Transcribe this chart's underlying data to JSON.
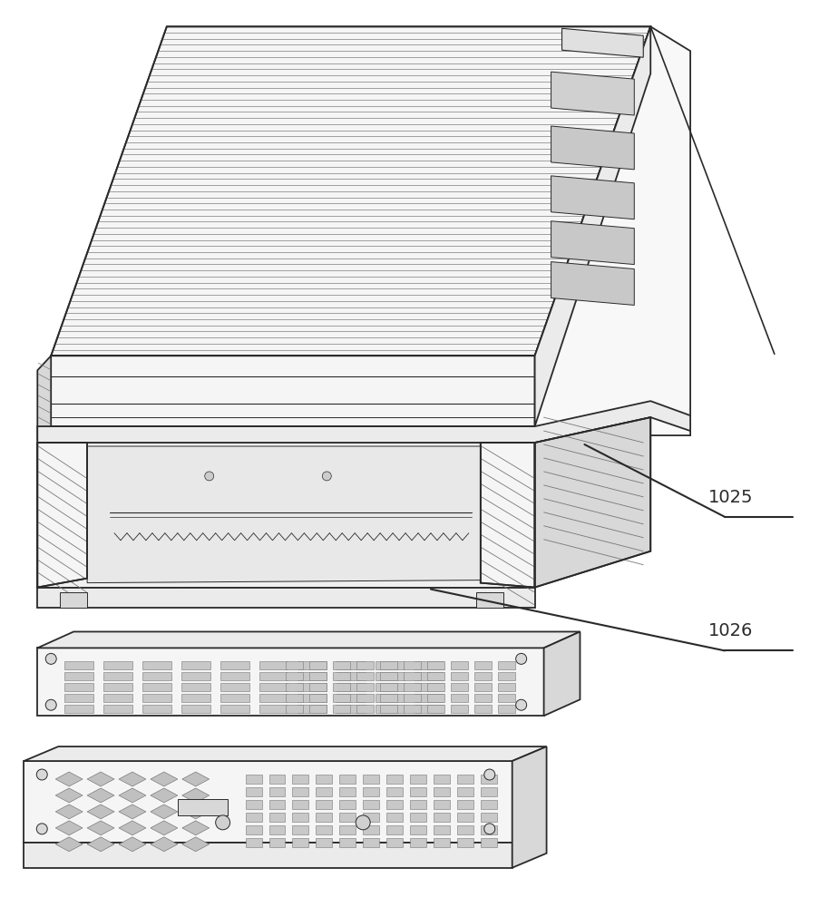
{
  "background_color": "#ffffff",
  "line_color": "#2a2a2a",
  "label_1": "1025",
  "label_2": "1026",
  "figsize": [
    9.25,
    10.0
  ],
  "dpi": 100,
  "hatch_color": "#555555",
  "fill_light": "#f5f5f5",
  "fill_mid": "#ebebeb",
  "fill_dark": "#d8d8d8",
  "fill_side": "#e2e2e2"
}
